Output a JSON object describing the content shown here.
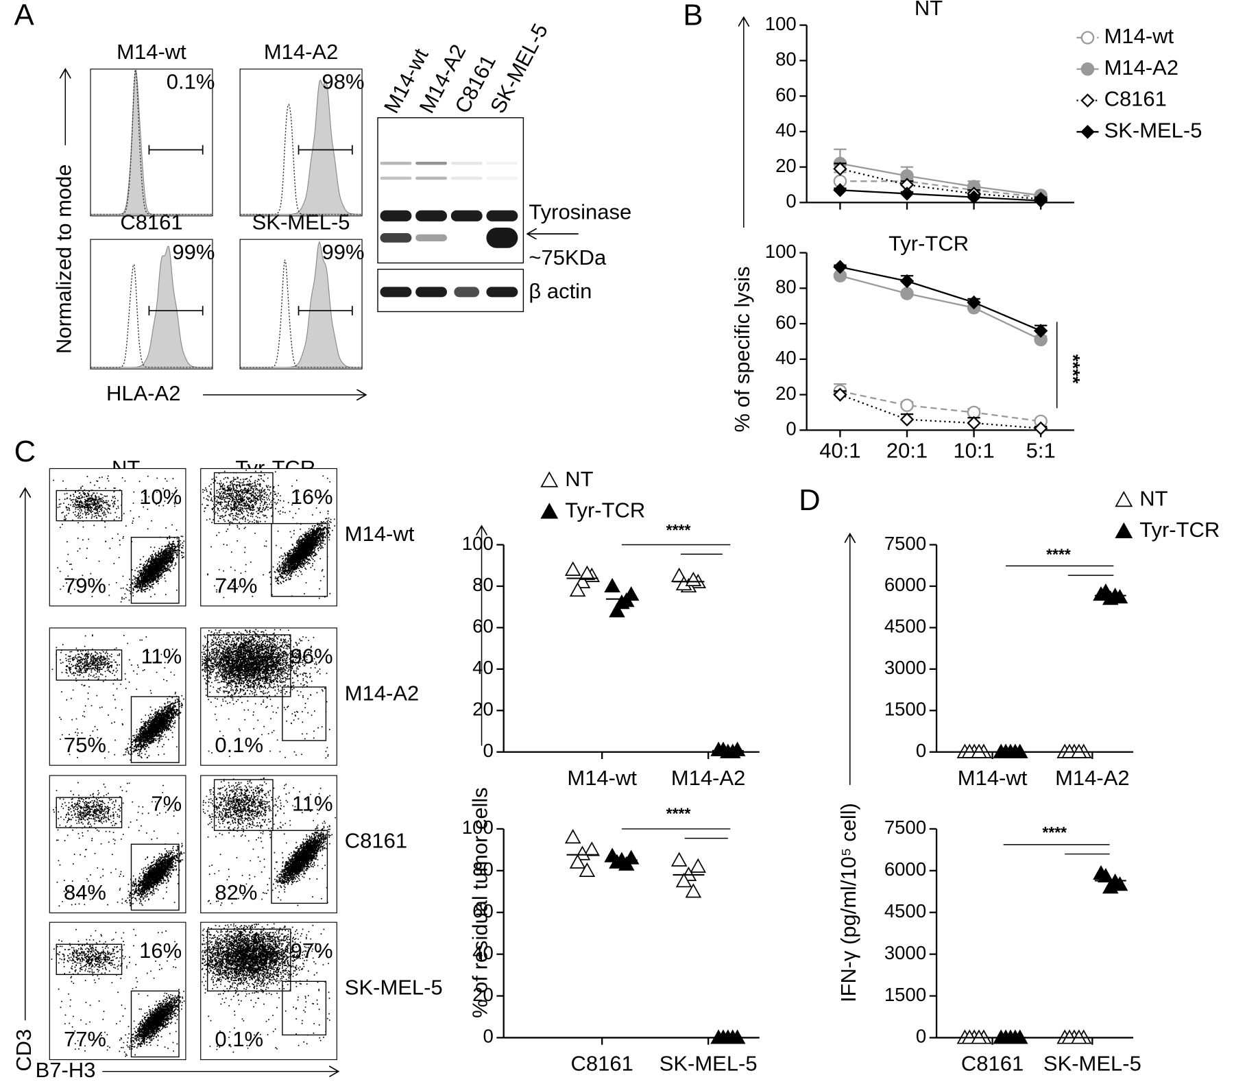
{
  "panel_labels": [
    "A",
    "B",
    "C",
    "D"
  ],
  "panel_a": {
    "histograms": [
      {
        "title": "M14-wt",
        "percent": "0.1%"
      },
      {
        "title": "M14-A2",
        "percent": "98%"
      },
      {
        "title": "C8161",
        "percent": "99%"
      },
      {
        "title": "SK-MEL-5",
        "percent": "99%"
      }
    ],
    "y_label": "Normalized to mode",
    "x_label": "HLA-A2",
    "blot": {
      "lanes": [
        "M14-wt",
        "M14-A2",
        "C8161",
        "SK-MEL-5"
      ],
      "band_labels": [
        "Tyrosinase",
        "~75KDa",
        "β actin"
      ]
    }
  },
  "panel_c_flow": {
    "columns": [
      "NT",
      "Tyr-TCR"
    ],
    "rows": [
      {
        "label": "M14-wt",
        "percents": [
          [
            "10%",
            "79%"
          ],
          [
            "16%",
            "74%"
          ]
        ]
      },
      {
        "label": "M14-A2",
        "percents": [
          [
            "11%",
            "75%"
          ],
          [
            "96%",
            "0.1%"
          ]
        ]
      },
      {
        "label": "C8161",
        "percents": [
          [
            "7%",
            "84%"
          ],
          [
            "11%",
            "82%"
          ]
        ]
      },
      {
        "label": "SK-MEL-5",
        "percents": [
          [
            "16%",
            "77%"
          ],
          [
            "97%",
            "0.1%"
          ]
        ]
      }
    ],
    "y_label": "CD3",
    "x_label": "B7-H3"
  },
  "chart_data": [
    {
      "type": "line",
      "title": "NT",
      "ylim": [
        0,
        100
      ],
      "yticks": [
        0,
        20,
        40,
        60,
        80,
        100
      ],
      "legend": true,
      "series": [
        {
          "name": "M14-wt",
          "color": "#999999",
          "marker": "circle-open",
          "line_style": "dashed",
          "values": [
            12,
            12,
            7,
            3
          ],
          "errors": [
            5,
            3,
            2,
            1
          ]
        },
        {
          "name": "M14-A2",
          "color": "#999999",
          "marker": "circle",
          "line_style": "solid",
          "values": [
            22,
            15,
            9,
            4
          ],
          "errors": [
            8,
            5,
            3,
            1
          ]
        },
        {
          "name": "C8161",
          "color": "#000000",
          "marker": "diamond-open",
          "line_style": "dotted",
          "values": [
            19,
            10,
            5,
            2
          ],
          "errors": [
            3,
            2,
            2,
            1
          ]
        },
        {
          "name": "SK-MEL-5",
          "color": "#000000",
          "marker": "diamond",
          "line_style": "solid",
          "values": [
            7,
            5,
            3,
            1
          ],
          "errors": [
            1,
            1,
            1,
            1
          ]
        }
      ]
    },
    {
      "type": "line",
      "title": "Tyr-TCR",
      "y_label": "% of specific lysis",
      "categories": [
        "40:1",
        "20:1",
        "10:1",
        "5:1"
      ],
      "ylim": [
        0,
        100
      ],
      "yticks": [
        0,
        20,
        40,
        60,
        80,
        100
      ],
      "annotation": "****",
      "series": [
        {
          "name": "M14-wt",
          "color": "#999999",
          "marker": "circle-open",
          "line_style": "dashed",
          "values": [
            22,
            14,
            10,
            5
          ],
          "errors": [
            4,
            2,
            2,
            1
          ]
        },
        {
          "name": "M14-A2",
          "color": "#999999",
          "marker": "circle",
          "line_style": "solid",
          "values": [
            87,
            77,
            69,
            51
          ],
          "errors": [
            1,
            1,
            1,
            2
          ]
        },
        {
          "name": "C8161",
          "color": "#000000",
          "marker": "diamond-open",
          "line_style": "dotted",
          "values": [
            20,
            6,
            4,
            1
          ],
          "errors": [
            2,
            3,
            3,
            1
          ]
        },
        {
          "name": "SK-MEL-5",
          "color": "#000000",
          "marker": "diamond",
          "line_style": "solid",
          "values": [
            92,
            84,
            72,
            56
          ],
          "errors": [
            1,
            3,
            2,
            3
          ]
        }
      ]
    },
    {
      "type": "dot",
      "categories": [
        "M14-wt",
        "M14-A2"
      ],
      "ylim": [
        0,
        100
      ],
      "yticks": [
        0,
        20,
        40,
        60,
        80,
        100
      ],
      "legend": true,
      "annotation": "****",
      "series": [
        {
          "name": "NT",
          "color": "#000000",
          "marker": "triangle-open",
          "values": [
            [
              88,
              85,
              82,
              78,
              86
            ],
            [
              85,
              82,
              80,
              81,
              83
            ]
          ]
        },
        {
          "name": "Tyr-TCR",
          "color": "#000000",
          "marker": "triangle",
          "values": [
            [
              80,
              76,
              72,
              68,
              73
            ],
            [
              1,
              1,
              0,
              1,
              0
            ]
          ]
        }
      ]
    },
    {
      "type": "dot",
      "y_label": "% of residual tumor cells",
      "categories": [
        "C8161",
        "SK-MEL-5"
      ],
      "ylim": [
        0,
        100
      ],
      "yticks": [
        0,
        20,
        40,
        60,
        80,
        100
      ],
      "annotation": "****",
      "series": [
        {
          "name": "NT",
          "color": "#000000",
          "marker": "triangle-open",
          "values": [
            [
              96,
              90,
              88,
              84,
              80
            ],
            [
              85,
              82,
              78,
              75,
              70
            ]
          ]
        },
        {
          "name": "Tyr-TCR",
          "color": "#000000",
          "marker": "triangle",
          "values": [
            [
              87,
              86,
              85,
              84,
              83
            ],
            [
              0,
              0,
              0,
              0,
              0
            ]
          ]
        }
      ]
    },
    {
      "type": "dot",
      "categories": [
        "M14-wt",
        "M14-A2"
      ],
      "ylim": [
        0,
        7500
      ],
      "yticks": [
        0,
        1500,
        3000,
        4500,
        6000,
        7500
      ],
      "legend": true,
      "annotation": "****",
      "series": [
        {
          "name": "NT",
          "color": "#000000",
          "marker": "triangle-open",
          "values": [
            [
              0,
              0,
              0,
              0,
              0
            ],
            [
              0,
              0,
              0,
              0,
              0
            ]
          ]
        },
        {
          "name": "Tyr-TCR",
          "color": "#000000",
          "marker": "triangle",
          "values": [
            [
              0,
              0,
              0,
              0,
              0
            ],
            [
              5700,
              5600,
              5550,
              5800,
              5650
            ]
          ]
        }
      ]
    },
    {
      "type": "dot",
      "y_label": "IFN-γ (pg/ml/10⁵ cell)",
      "categories": [
        "C8161",
        "SK-MEL-5"
      ],
      "ylim": [
        0,
        7500
      ],
      "yticks": [
        0,
        1500,
        3000,
        4500,
        6000,
        7500
      ],
      "annotation": "****",
      "series": [
        {
          "name": "NT",
          "color": "#000000",
          "marker": "triangle-open",
          "values": [
            [
              0,
              0,
              0,
              0,
              0
            ],
            [
              0,
              0,
              0,
              0,
              0
            ]
          ]
        },
        {
          "name": "Tyr-TCR",
          "color": "#000000",
          "marker": "triangle",
          "values": [
            [
              0,
              0,
              0,
              0,
              0
            ],
            [
              5900,
              5500,
              5400,
              5800,
              5600
            ]
          ]
        }
      ]
    }
  ]
}
